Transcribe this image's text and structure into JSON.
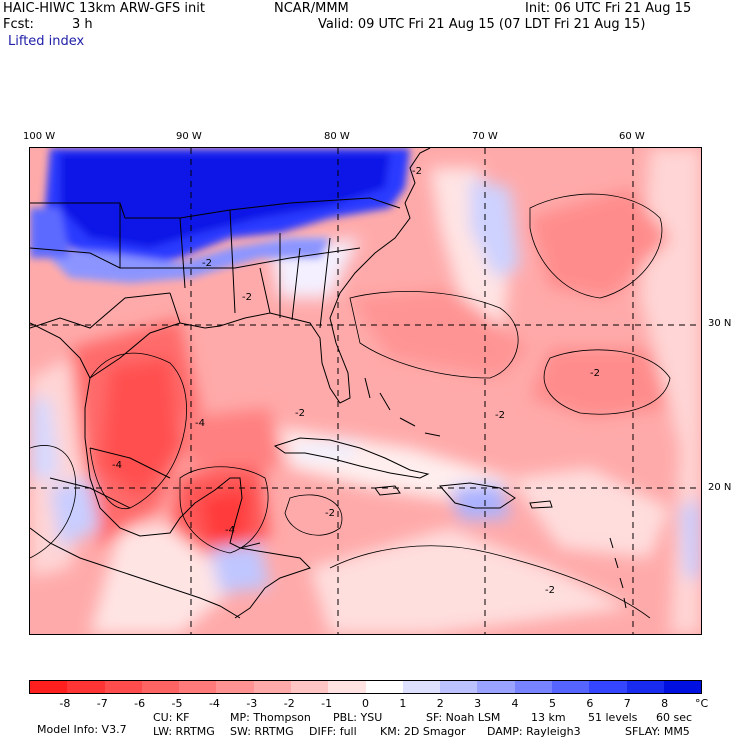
{
  "header": {
    "model": "HAIC-HIWC 13km ARW-GFS init",
    "org": "NCAR/MMM",
    "init": "Init: 06 UTC Fri 21 Aug 15",
    "fcst_label": "Fcst:",
    "fcst_value": "3 h",
    "valid": "Valid: 09 UTC Fri 21 Aug 15 (07 LDT Fri 21 Aug 15)",
    "field": "Lifted index"
  },
  "axes": {
    "lon_labels": [
      "100 W",
      "90 W",
      "80 W",
      "70 W",
      "60 W"
    ],
    "lat_labels": [
      "30 N",
      "20 N"
    ]
  },
  "colorbar": {
    "ticks": [
      "-8",
      "-7",
      "-6",
      "-5",
      "-4",
      "-3",
      "-2",
      "-1",
      "0",
      "1",
      "2",
      "3",
      "4",
      "5",
      "6",
      "7",
      "8"
    ],
    "unit": "°C",
    "colors": [
      "#ff1f1f",
      "#ff3535",
      "#ff4d4d",
      "#ff6464",
      "#ff7b7b",
      "#ff9393",
      "#ffaaaa",
      "#ffc5c5",
      "#ffe2e2",
      "#ffffff",
      "#dde0ff",
      "#bcc2ff",
      "#9aa3ff",
      "#7884ff",
      "#5665ff",
      "#3446ff",
      "#1a2bf0",
      "#0010e0"
    ]
  },
  "map_labels": [
    "-2",
    "-2",
    "-2",
    "-2",
    "-2",
    "-2",
    "-2",
    "-4",
    "-4",
    "-4",
    "-2"
  ],
  "info": {
    "line1": [
      "Model Info: V3.7",
      "CU: KF",
      "MP: Thompson",
      "PBL: YSU",
      "SF: Noah LSM",
      "13 km",
      "51 levels",
      "60 sec"
    ],
    "line2": [
      "LW: RRTMG",
      "SW: RRTMG",
      "DIFF: full",
      "KM: 2D Smagor",
      "DAMP: Rayleigh3",
      "SFLAY: MM5"
    ]
  }
}
